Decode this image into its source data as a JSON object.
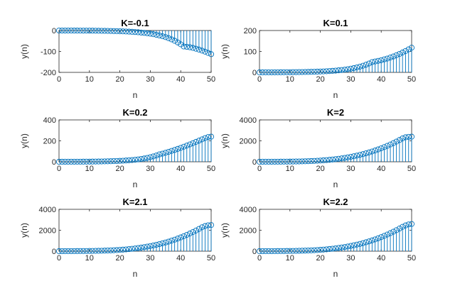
{
  "style": {
    "stem_color": "#0072BD",
    "axis_color": "#262626",
    "background": "#ffffff"
  },
  "chart_data": [
    {
      "type": "stem",
      "title": "K=-0.1",
      "xlabel": "n",
      "ylabel": "y(n)",
      "xlim": [
        0,
        50
      ],
      "ylim": [
        -200,
        0
      ],
      "xticks": [
        0,
        10,
        20,
        30,
        40,
        50
      ],
      "yticks": [
        -200,
        -100,
        0
      ],
      "x": [
        0,
        1,
        2,
        3,
        4,
        5,
        6,
        7,
        8,
        9,
        10,
        11,
        12,
        13,
        14,
        15,
        16,
        17,
        18,
        19,
        20,
        21,
        22,
        23,
        24,
        25,
        26,
        27,
        28,
        29,
        30,
        31,
        32,
        33,
        34,
        35,
        36,
        37,
        38,
        39,
        40,
        41,
        42,
        43,
        44,
        45,
        46,
        47,
        48,
        49,
        50
      ],
      "values": [
        -0.1,
        -0.1,
        -0.1,
        -0.2,
        -0.2,
        -0.3,
        -0.3,
        -0.4,
        -0.5,
        -0.6,
        -0.7,
        -0.8,
        -1,
        -1.2,
        -1.4,
        -1.6,
        -1.9,
        -2.2,
        -2.6,
        -3,
        -3.5,
        -4,
        -4.7,
        -5.4,
        -6.3,
        -7.3,
        -8.4,
        -9.8,
        -11.3,
        -13.1,
        -15.2,
        -17.6,
        -20.4,
        -23.6,
        -27.3,
        -31.6,
        -36.6,
        -42.4,
        -49.1,
        -56.9,
        -65.9,
        -76.3,
        -78,
        -80,
        -83,
        -87,
        -91,
        -96,
        -101,
        -107,
        -113
      ]
    },
    {
      "type": "stem",
      "title": "K=0.1",
      "xlabel": "n",
      "ylabel": "y(n)",
      "xlim": [
        0,
        50
      ],
      "ylim": [
        0,
        200
      ],
      "xticks": [
        0,
        10,
        20,
        30,
        40,
        50
      ],
      "yticks": [
        0,
        100,
        200
      ],
      "x": [
        0,
        1,
        2,
        3,
        4,
        5,
        6,
        7,
        8,
        9,
        10,
        11,
        12,
        13,
        14,
        15,
        16,
        17,
        18,
        19,
        20,
        21,
        22,
        23,
        24,
        25,
        26,
        27,
        28,
        29,
        30,
        31,
        32,
        33,
        34,
        35,
        36,
        37,
        38,
        39,
        40,
        41,
        42,
        43,
        44,
        45,
        46,
        47,
        48,
        49,
        50
      ],
      "values": [
        0.1,
        0.1,
        0.2,
        0.2,
        0.3,
        0.3,
        0.4,
        0.5,
        0.6,
        0.7,
        0.8,
        1,
        1.2,
        1.4,
        1.6,
        1.9,
        2.2,
        2.6,
        3,
        3.5,
        4,
        4.7,
        5.4,
        6.3,
        7.3,
        8.4,
        9.8,
        11.3,
        13.1,
        15.2,
        17.6,
        20.4,
        23.6,
        27.3,
        31.6,
        36.6,
        42.4,
        49.1,
        52,
        55,
        58,
        62,
        66,
        71,
        76,
        82,
        88,
        95,
        102,
        110,
        118
      ]
    },
    {
      "type": "stem",
      "title": "K=0.2",
      "xlabel": "n",
      "ylabel": "y(n)",
      "xlim": [
        0,
        50
      ],
      "ylim": [
        0,
        400
      ],
      "xticks": [
        0,
        10,
        20,
        30,
        40,
        50
      ],
      "yticks": [
        0,
        200,
        400
      ],
      "x": [
        0,
        1,
        2,
        3,
        4,
        5,
        6,
        7,
        8,
        9,
        10,
        11,
        12,
        13,
        14,
        15,
        16,
        17,
        18,
        19,
        20,
        21,
        22,
        23,
        24,
        25,
        26,
        27,
        28,
        29,
        30,
        31,
        32,
        33,
        34,
        35,
        36,
        37,
        38,
        39,
        40,
        41,
        42,
        43,
        44,
        45,
        46,
        47,
        48,
        49,
        50
      ],
      "values": [
        0.2,
        0.2,
        0.3,
        0.4,
        0.5,
        0.6,
        0.8,
        0.9,
        1.1,
        1.3,
        1.6,
        1.9,
        2.3,
        2.7,
        3.2,
        3.8,
        4.5,
        5.3,
        6.3,
        7.4,
        8.7,
        10.2,
        12,
        14.1,
        16.6,
        19.5,
        22.9,
        26.9,
        31.6,
        37.1,
        43.6,
        51.2,
        60.1,
        70.6,
        78,
        86,
        95,
        104,
        113,
        123,
        133,
        144,
        155,
        166,
        178,
        190,
        202,
        214,
        226,
        236,
        240
      ]
    },
    {
      "type": "stem",
      "title": "K=2",
      "xlabel": "n",
      "ylabel": "y(n)",
      "xlim": [
        0,
        50
      ],
      "ylim": [
        0,
        4000
      ],
      "xticks": [
        0,
        10,
        20,
        30,
        40,
        50
      ],
      "yticks": [
        0,
        2000,
        4000
      ],
      "x": [
        0,
        1,
        2,
        3,
        4,
        5,
        6,
        7,
        8,
        9,
        10,
        11,
        12,
        13,
        14,
        15,
        16,
        17,
        18,
        19,
        20,
        21,
        22,
        23,
        24,
        25,
        26,
        27,
        28,
        29,
        30,
        31,
        32,
        33,
        34,
        35,
        36,
        37,
        38,
        39,
        40,
        41,
        42,
        43,
        44,
        45,
        46,
        47,
        48,
        49,
        50
      ],
      "values": [
        2,
        3,
        4,
        5,
        6,
        7,
        9,
        11,
        13,
        16,
        19,
        23,
        28,
        33,
        40,
        48,
        58,
        69,
        82,
        98,
        116,
        137,
        161,
        188,
        218,
        251,
        287,
        327,
        371,
        419,
        471,
        528,
        590,
        657,
        730,
        808,
        892,
        982,
        1078,
        1180,
        1288,
        1403,
        1524,
        1652,
        1787,
        1929,
        2078,
        2234,
        2340,
        2380,
        2400
      ]
    },
    {
      "type": "stem",
      "title": "K=2.1",
      "xlabel": "n",
      "ylabel": "y(n)",
      "xlim": [
        0,
        50
      ],
      "ylim": [
        0,
        4000
      ],
      "xticks": [
        0,
        10,
        20,
        30,
        40,
        50
      ],
      "yticks": [
        0,
        2000,
        4000
      ],
      "x": [
        0,
        1,
        2,
        3,
        4,
        5,
        6,
        7,
        8,
        9,
        10,
        11,
        12,
        13,
        14,
        15,
        16,
        17,
        18,
        19,
        20,
        21,
        22,
        23,
        24,
        25,
        26,
        27,
        28,
        29,
        30,
        31,
        32,
        33,
        34,
        35,
        36,
        37,
        38,
        39,
        40,
        41,
        42,
        43,
        44,
        45,
        46,
        47,
        48,
        49,
        50
      ],
      "values": [
        2,
        3,
        4,
        5,
        6,
        8,
        10,
        12,
        14,
        17,
        21,
        25,
        30,
        36,
        43,
        52,
        62,
        74,
        88,
        104,
        123,
        145,
        170,
        198,
        229,
        263,
        300,
        341,
        386,
        435,
        488,
        546,
        609,
        677,
        750,
        829,
        914,
        1005,
        1102,
        1206,
        1316,
        1433,
        1557,
        1688,
        1826,
        1971,
        2124,
        2284,
        2400,
        2470,
        2500
      ]
    },
    {
      "type": "stem",
      "title": "K=2.2",
      "xlabel": "n",
      "ylabel": "y(n)",
      "xlim": [
        0,
        50
      ],
      "ylim": [
        0,
        4000
      ],
      "xticks": [
        0,
        10,
        20,
        30,
        40,
        50
      ],
      "yticks": [
        0,
        2000,
        4000
      ],
      "x": [
        0,
        1,
        2,
        3,
        4,
        5,
        6,
        7,
        8,
        9,
        10,
        11,
        12,
        13,
        14,
        15,
        16,
        17,
        18,
        19,
        20,
        21,
        22,
        23,
        24,
        25,
        26,
        27,
        28,
        29,
        30,
        31,
        32,
        33,
        34,
        35,
        36,
        37,
        38,
        39,
        40,
        41,
        42,
        43,
        44,
        45,
        46,
        47,
        48,
        49,
        50
      ],
      "values": [
        2,
        3,
        4,
        5,
        7,
        8,
        10,
        12,
        15,
        18,
        22,
        26,
        31,
        37,
        45,
        54,
        64,
        77,
        91,
        108,
        128,
        150,
        176,
        205,
        237,
        272,
        311,
        353,
        399,
        449,
        503,
        562,
        626,
        695,
        769,
        849,
        935,
        1027,
        1126,
        1232,
        1344,
        1463,
        1589,
        1722,
        1862,
        2009,
        2164,
        2326,
        2460,
        2560,
        2600
      ]
    }
  ]
}
